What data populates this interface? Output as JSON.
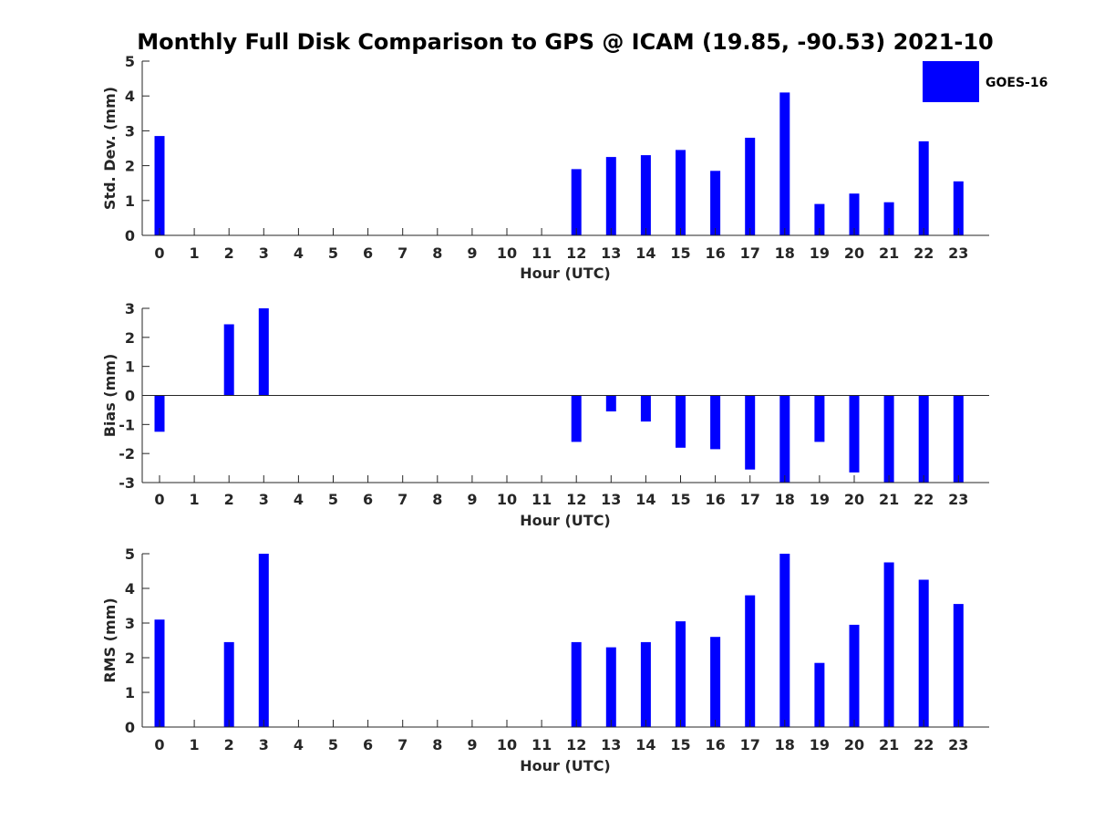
{
  "figure": {
    "title": "Monthly Full Disk Comparison to GPS @ ICAM (19.85, -90.53) 2021-10",
    "legend_label": "GOES-16",
    "bar_color": "#0000ff"
  },
  "chart_data": [
    {
      "type": "bar",
      "ylabel": "Std. Dev. (mm)",
      "xlabel": "Hour (UTC)",
      "categories": [
        "0",
        "1",
        "2",
        "3",
        "4",
        "5",
        "6",
        "7",
        "8",
        "9",
        "10",
        "11",
        "12",
        "13",
        "14",
        "15",
        "16",
        "17",
        "18",
        "19",
        "20",
        "21",
        "22",
        "23"
      ],
      "yticks": [
        0,
        1,
        2,
        3,
        4,
        5
      ],
      "ylim": [
        0,
        5
      ],
      "legend": "top-right",
      "series": [
        {
          "name": "GOES-16",
          "values": [
            2.85,
            null,
            null,
            null,
            null,
            null,
            null,
            null,
            null,
            null,
            null,
            null,
            1.9,
            2.25,
            2.3,
            2.45,
            1.85,
            2.8,
            4.1,
            0.9,
            1.2,
            0.95,
            2.7,
            1.55
          ]
        }
      ]
    },
    {
      "type": "bar",
      "ylabel": "Bias (mm)",
      "xlabel": "Hour (UTC)",
      "categories": [
        "0",
        "1",
        "2",
        "3",
        "4",
        "5",
        "6",
        "7",
        "8",
        "9",
        "10",
        "11",
        "12",
        "13",
        "14",
        "15",
        "16",
        "17",
        "18",
        "19",
        "20",
        "21",
        "22",
        "23"
      ],
      "yticks": [
        -3,
        -2,
        -1,
        0,
        1,
        2,
        3
      ],
      "ylim": [
        -3,
        3
      ],
      "series": [
        {
          "name": "GOES-16",
          "values": [
            -1.25,
            null,
            2.45,
            3.0,
            null,
            null,
            null,
            null,
            null,
            null,
            null,
            null,
            -1.6,
            -0.55,
            -0.9,
            -1.8,
            -1.85,
            -2.55,
            -3.0,
            -1.6,
            -2.65,
            -3.0,
            -3.0,
            -3.0
          ]
        }
      ]
    },
    {
      "type": "bar",
      "ylabel": "RMS (mm)",
      "xlabel": "Hour (UTC)",
      "categories": [
        "0",
        "1",
        "2",
        "3",
        "4",
        "5",
        "6",
        "7",
        "8",
        "9",
        "10",
        "11",
        "12",
        "13",
        "14",
        "15",
        "16",
        "17",
        "18",
        "19",
        "20",
        "21",
        "22",
        "23"
      ],
      "yticks": [
        0,
        1,
        2,
        3,
        4,
        5
      ],
      "ylim": [
        0,
        5
      ],
      "series": [
        {
          "name": "GOES-16",
          "values": [
            3.1,
            null,
            2.45,
            5.0,
            null,
            null,
            null,
            null,
            null,
            null,
            null,
            null,
            2.45,
            2.3,
            2.45,
            3.05,
            2.6,
            3.8,
            5.0,
            1.85,
            2.95,
            4.75,
            4.25,
            3.55
          ]
        }
      ]
    }
  ]
}
